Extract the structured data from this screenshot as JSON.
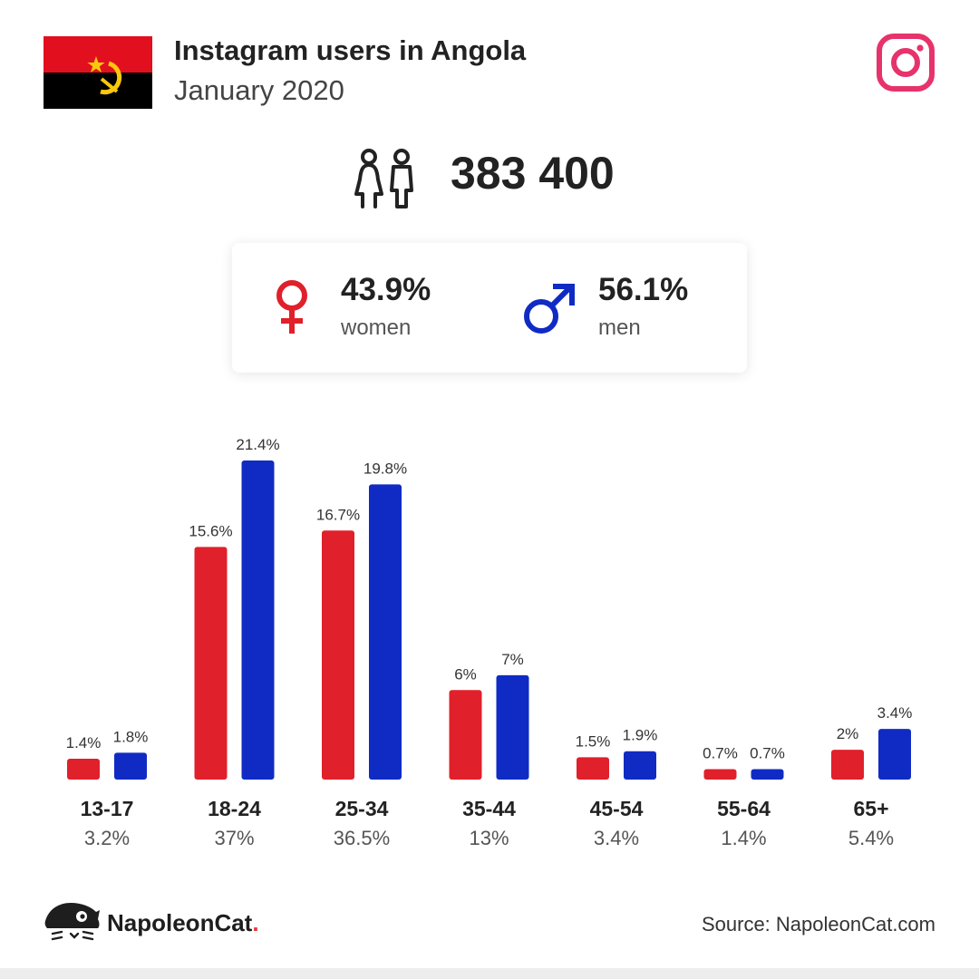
{
  "header": {
    "title": "Instagram users in Angola",
    "subtitle": "January 2020",
    "flag_icon": "angola-flag",
    "logo_icon": "instagram-logo-icon"
  },
  "total": {
    "value": "383 400",
    "icon": "people-icon"
  },
  "gender": {
    "women_pct": "43.9%",
    "women_label": "women",
    "men_pct": "56.1%",
    "men_label": "men",
    "women_color": "#e0202a",
    "men_color": "#102bc4"
  },
  "chart_data": {
    "type": "bar",
    "categories": [
      "13-17",
      "18-24",
      "25-34",
      "35-44",
      "45-54",
      "55-64",
      "65+"
    ],
    "category_totals": [
      "3.2%",
      "37%",
      "36.5%",
      "13%",
      "3.4%",
      "1.4%",
      "5.4%"
    ],
    "series": [
      {
        "color": "#e0202a",
        "values": [
          1.4,
          15.6,
          16.7,
          6,
          1.5,
          0.7,
          2
        ],
        "labels": [
          "1.4%",
          "15.6%",
          "16.7%",
          "6%",
          "1.5%",
          "0.7%",
          "2%"
        ]
      },
      {
        "color": "#102bc4",
        "values": [
          1.8,
          21.4,
          19.8,
          7,
          1.9,
          0.7,
          3.4
        ],
        "labels": [
          "1.8%",
          "21.4%",
          "19.8%",
          "7%",
          "1.9%",
          "0.7%",
          "3.4%"
        ]
      }
    ],
    "ylim": [
      0,
      21.4
    ],
    "grid": false
  },
  "footer": {
    "brand": "NapoleonCat",
    "brand_dot": ".",
    "brand_icon": "napoleoncat-logo-icon",
    "source": "Source: NapoleonCat.com"
  }
}
